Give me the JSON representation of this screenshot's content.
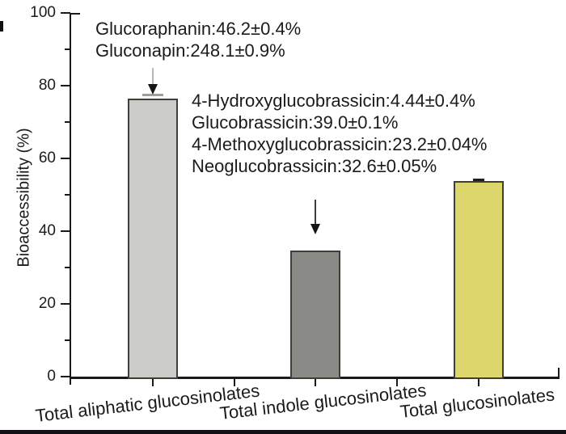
{
  "chart_data": {
    "type": "bar",
    "title": "",
    "xlabel": "",
    "ylabel": "Bioaccessibility (%)",
    "ylim": [
      0,
      100
    ],
    "yticks_major": [
      0,
      20,
      40,
      60,
      80,
      100
    ],
    "yticks_minor": [
      10,
      30,
      50,
      70,
      90
    ],
    "grid": false,
    "legend": "none",
    "categories": [
      "Total aliphatic glucosinolates",
      "Total indole glucosinolates",
      "Total glucosinolates"
    ],
    "values": [
      76.5,
      34.7,
      53.8
    ],
    "errors": [
      1.2,
      0,
      0.6
    ],
    "bar_colors": [
      "#cbcbc8",
      "#8a8a86",
      "#dcd66c"
    ],
    "bar_border_color": "#3e3e3a",
    "annotations": [
      {
        "target": "Total aliphatic glucosinolates",
        "lines": [
          "Glucoraphanin:46.2±0.4%",
          "Gluconapin:248.1±0.9%"
        ]
      },
      {
        "target": "Total indole glucosinolates",
        "lines": [
          "4-Hydroxyglucobrassicin:4.44±0.4%",
          "Glucobrassicin:39.0±0.1%",
          "4-Methoxyglucobrassicin:23.2±0.04%",
          "Neoglucobrassicin:32.6±0.05%"
        ]
      }
    ],
    "arrows": [
      {
        "points_to": "Total aliphatic glucosinolates"
      },
      {
        "points_to": "Total indole glucosinolates"
      }
    ]
  }
}
